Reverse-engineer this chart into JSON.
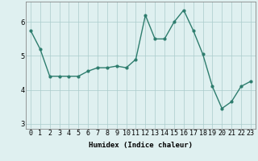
{
  "x": [
    0,
    1,
    2,
    3,
    4,
    5,
    6,
    7,
    8,
    9,
    10,
    11,
    12,
    13,
    14,
    15,
    16,
    17,
    18,
    19,
    20,
    21,
    22,
    23
  ],
  "y": [
    5.75,
    5.2,
    4.4,
    4.4,
    4.4,
    4.4,
    4.55,
    4.65,
    4.65,
    4.7,
    4.65,
    4.9,
    6.2,
    5.5,
    5.5,
    6.0,
    6.35,
    5.75,
    5.05,
    4.1,
    3.45,
    3.65,
    4.1,
    4.25
  ],
  "line_color": "#2e7d6e",
  "marker": "o",
  "marker_size": 2.0,
  "linewidth": 1.0,
  "bg_color": "#dff0f0",
  "grid_color": "#aacccc",
  "xlabel": "Humidex (Indice chaleur)",
  "ylabel": "",
  "title": "",
  "xlim": [
    -0.5,
    23.5
  ],
  "ylim": [
    2.85,
    6.6
  ],
  "yticks": [
    3,
    4,
    5,
    6
  ],
  "xtick_labels": [
    "0",
    "1",
    "2",
    "3",
    "4",
    "5",
    "6",
    "7",
    "8",
    "9",
    "10",
    "11",
    "12",
    "13",
    "14",
    "15",
    "16",
    "17",
    "18",
    "19",
    "20",
    "21",
    "22",
    "23"
  ],
  "xlabel_fontsize": 6.5,
  "tick_fontsize": 6.0
}
